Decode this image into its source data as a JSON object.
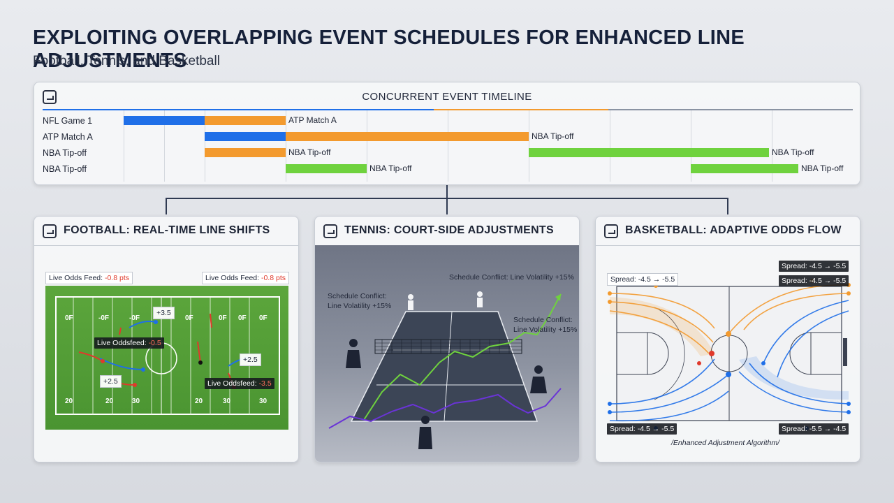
{
  "header": {
    "title": "EXPLOITING OVERLAPPING EVENT SCHEDULES FOR ENHANCED LINE ADJUSTMENTS",
    "subtitle": "Football, Tennis, and Basketball"
  },
  "timeline": {
    "title": "CONCURRENT EVENT TIMELINE",
    "rows": [
      "NFL Game 1",
      "ATP Match A",
      "NBA Tip-off",
      "NBA Tip-off"
    ],
    "bar_labels": [
      "ATP Match A",
      "NBA Tip-off",
      "NBA Tip-off",
      "NBA Tip-off",
      "NBA Tip-off",
      "NBA Tip-off"
    ]
  },
  "football": {
    "title": "FOOTBALL: REAL-TIME LINE SHIFTS",
    "feed_label": "Live Odds Feed:",
    "feed_value": "-0.8 pts",
    "feed_label_2": "Live Odds Feed:",
    "feed_value_2": "-0.8 pts",
    "odds_tag_1": "Live Oddsfeed:",
    "odds_tag_1_value": "-0.5",
    "odds_tag_2": "Live Oddsfeed:",
    "odds_tag_2_value": "-3.5",
    "values": [
      "+3.5",
      "+2.5",
      "+2.5"
    ],
    "yard_top": [
      "0F",
      "-0F",
      "-0F",
      "0F",
      "0F",
      "0F",
      "0F"
    ],
    "yard_bottom": [
      "20",
      "20",
      "30",
      "20",
      "30",
      "30"
    ]
  },
  "tennis": {
    "title": "TENNIS: COURT-SIDE ADJUSTMENTS",
    "annotation_1": "Schedule Conflict: Line Volatility +15%",
    "annotation_2_line1": "Schedule Conflict:",
    "annotation_2_line2": "Line Volatility +15%",
    "annotation_3_line1": "Schedule Conflict:",
    "annotation_3_line2": "Line Volatility +15%"
  },
  "basketball": {
    "title": "BASKETBALL: ADAPTIVE ODDS FLOW",
    "spread_top_left": "Spread: -4.5 → -5.5",
    "spread_top_right_1": "Spread: -4.5 → -5.5",
    "spread_top_right_2": "Spread: -4.5 → -5.5",
    "spread_bottom_left": "Spread: -4.5 → -5.5",
    "spread_bottom_right": "Spread: -5.5 → -4.5",
    "caption": "/Enhanced Adjustment Algorithm/"
  },
  "colors": {
    "blue": "#1f6fe8",
    "orange": "#f39a2e",
    "green": "#6fd23e",
    "purple": "#6a34d6",
    "red": "#e0392b",
    "field": "#4f9a34"
  }
}
